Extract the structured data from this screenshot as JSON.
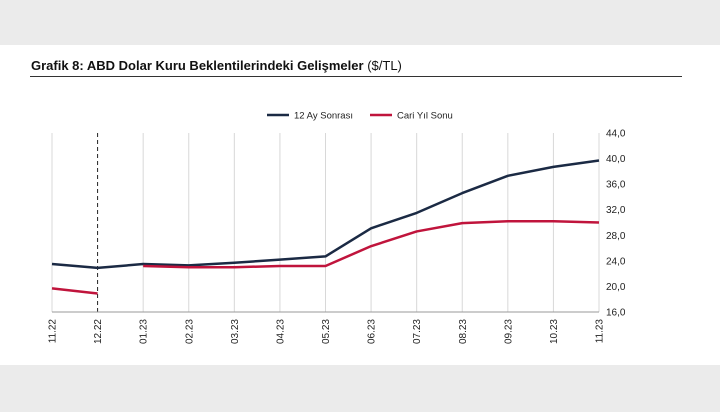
{
  "header": {
    "title_bold": "Grafik 8: ABD Dolar Kuru Beklentilerindeki Gelişmeler",
    "title_unit": "($/TL)"
  },
  "chart_data": {
    "type": "line",
    "x": [
      "11.22",
      "12.22",
      "01.23",
      "02.23",
      "03.23",
      "04.23",
      "05.23",
      "06.23",
      "07.23",
      "08.23",
      "09.23",
      "10.23",
      "11.23"
    ],
    "series": [
      {
        "name": "12 Ay Sonrası",
        "color": "#1b2a44",
        "values": [
          23.5,
          22.9,
          23.5,
          23.3,
          23.7,
          24.2,
          24.7,
          29.1,
          31.5,
          34.6,
          37.3,
          38.7,
          39.7
        ]
      },
      {
        "name": "Cari Yıl Sonu",
        "color": "#c0143c",
        "values": [
          19.7,
          18.9,
          null,
          null,
          null,
          null,
          null,
          null,
          null,
          null,
          null,
          null,
          null
        ],
        "values_continued": [
          null,
          null,
          23.2,
          23.0,
          23.0,
          23.2,
          23.2,
          26.3,
          28.6,
          29.9,
          30.2,
          30.2,
          30.0
        ]
      }
    ],
    "y_ticks": [
      "16,0",
      "20,0",
      "24,0",
      "28,0",
      "32,0",
      "36,0",
      "40,0",
      "44,0"
    ],
    "ylim": [
      16,
      44
    ],
    "y_axis_side": "right",
    "grid": "vertical",
    "vertical_dashed_marker": "12.22",
    "legend_position": "top-center",
    "xlabel": "",
    "ylabel": ""
  }
}
